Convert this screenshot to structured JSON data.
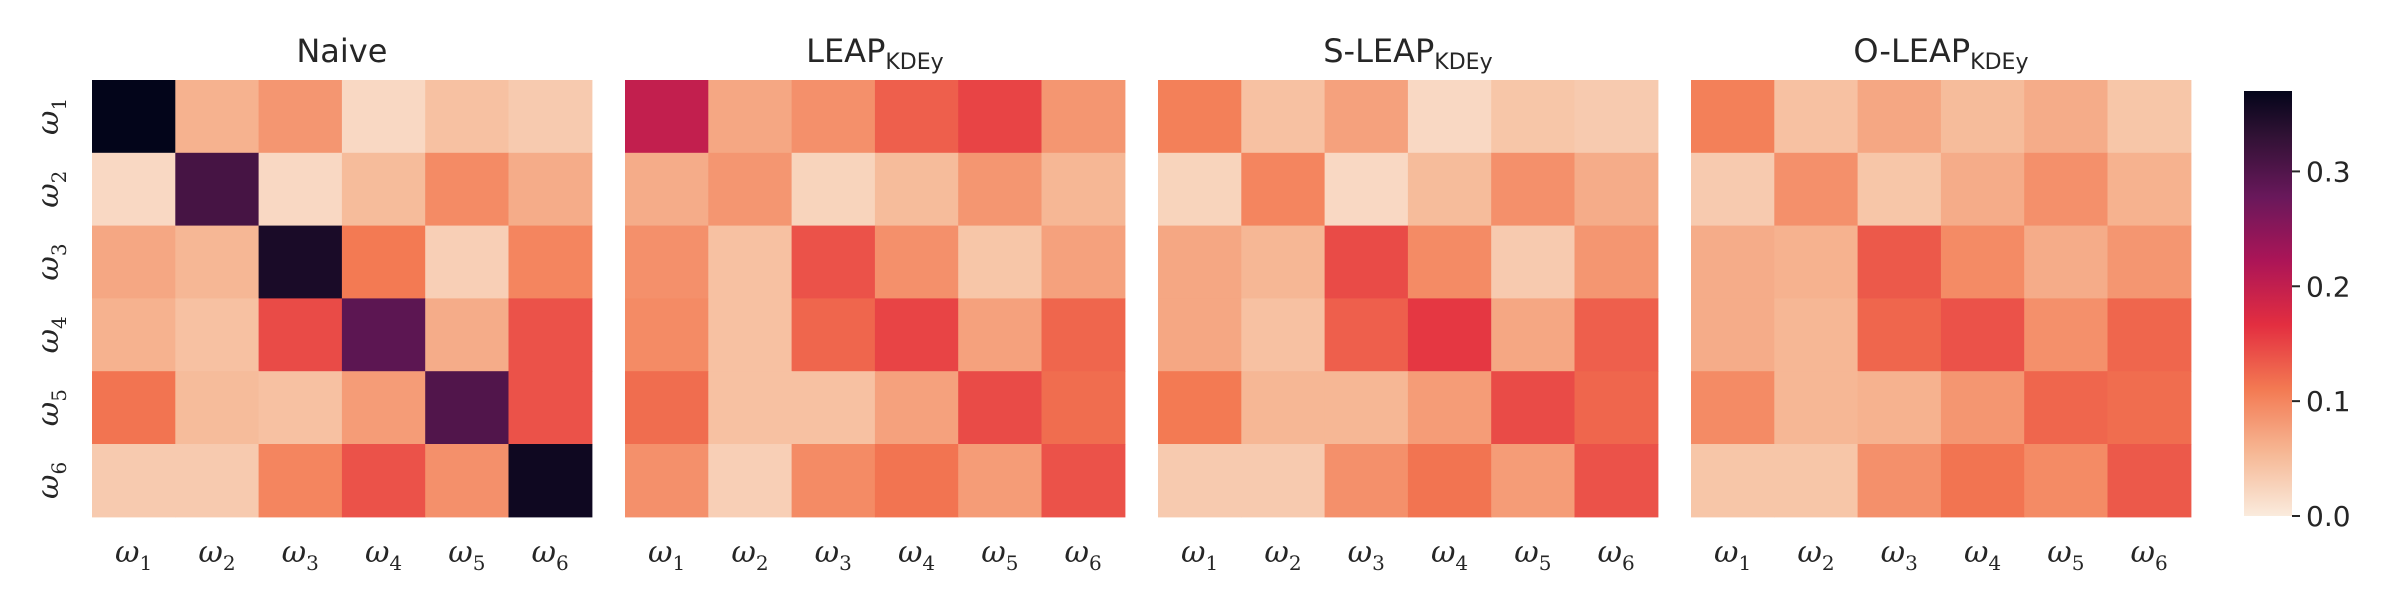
{
  "chart_data": {
    "type": "heatmap",
    "row_labels": [
      "ω1",
      "ω2",
      "ω3",
      "ω4",
      "ω5",
      "ω6"
    ],
    "col_labels": [
      "ω1",
      "ω2",
      "ω3",
      "ω4",
      "ω5",
      "ω6"
    ],
    "colorscale": "rocket_r",
    "vmin": 0.0,
    "vmax": 0.37,
    "colorbar_ticks": [
      {
        "value": 0.0,
        "label": "0.0"
      },
      {
        "value": 0.1,
        "label": "0.1"
      },
      {
        "value": 0.2,
        "label": "0.2"
      },
      {
        "value": 0.3,
        "label": "0.3"
      }
    ],
    "panels": [
      {
        "title": "Naive",
        "title_sub": "",
        "values": [
          [
            0.37,
            0.06,
            0.085,
            0.02,
            0.045,
            0.035
          ],
          [
            0.02,
            0.31,
            0.02,
            0.05,
            0.095,
            0.065
          ],
          [
            0.07,
            0.055,
            0.35,
            0.11,
            0.03,
            0.1
          ],
          [
            0.06,
            0.045,
            0.145,
            0.29,
            0.065,
            0.14
          ],
          [
            0.115,
            0.05,
            0.045,
            0.08,
            0.3,
            0.14
          ],
          [
            0.035,
            0.035,
            0.1,
            0.14,
            0.09,
            0.36
          ]
        ]
      },
      {
        "title": "LEAP",
        "title_sub": "KDEy",
        "values": [
          [
            0.2,
            0.07,
            0.09,
            0.13,
            0.15,
            0.085
          ],
          [
            0.065,
            0.085,
            0.025,
            0.05,
            0.085,
            0.055
          ],
          [
            0.09,
            0.045,
            0.14,
            0.09,
            0.04,
            0.075
          ],
          [
            0.095,
            0.045,
            0.125,
            0.15,
            0.075,
            0.125
          ],
          [
            0.12,
            0.045,
            0.045,
            0.075,
            0.145,
            0.12
          ],
          [
            0.09,
            0.03,
            0.095,
            0.115,
            0.08,
            0.14
          ]
        ]
      },
      {
        "title": "S-LEAP",
        "title_sub": "KDEy",
        "values": [
          [
            0.105,
            0.045,
            0.075,
            0.02,
            0.04,
            0.035
          ],
          [
            0.025,
            0.1,
            0.02,
            0.05,
            0.09,
            0.065
          ],
          [
            0.07,
            0.055,
            0.145,
            0.095,
            0.035,
            0.085
          ],
          [
            0.07,
            0.045,
            0.13,
            0.16,
            0.07,
            0.13
          ],
          [
            0.11,
            0.055,
            0.055,
            0.08,
            0.145,
            0.125
          ],
          [
            0.035,
            0.035,
            0.09,
            0.115,
            0.08,
            0.14
          ]
        ]
      },
      {
        "title": "O-LEAP",
        "title_sub": "KDEy",
        "values": [
          [
            0.105,
            0.045,
            0.07,
            0.05,
            0.065,
            0.04
          ],
          [
            0.035,
            0.09,
            0.04,
            0.065,
            0.09,
            0.06
          ],
          [
            0.065,
            0.06,
            0.135,
            0.095,
            0.065,
            0.085
          ],
          [
            0.065,
            0.055,
            0.125,
            0.14,
            0.09,
            0.125
          ],
          [
            0.095,
            0.055,
            0.06,
            0.085,
            0.125,
            0.12
          ],
          [
            0.04,
            0.04,
            0.09,
            0.115,
            0.095,
            0.135
          ]
        ]
      }
    ]
  }
}
